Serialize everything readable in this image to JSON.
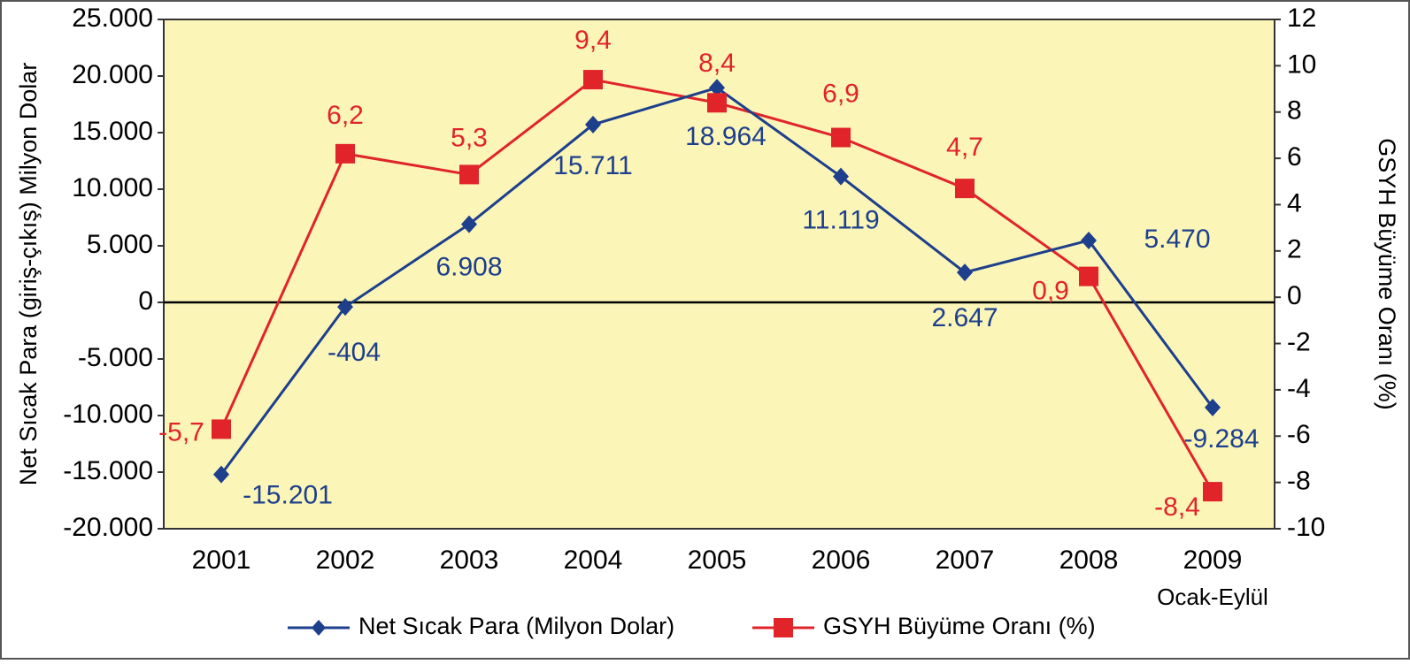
{
  "chart_data": {
    "type": "line",
    "categories": [
      "2001",
      "2002",
      "2003",
      "2004",
      "2005",
      "2006",
      "2007",
      "2008",
      "2009"
    ],
    "annotations": [
      "Ocak-Eylül"
    ],
    "y_label": "Net Sıcak Para (giriş-çıkış) Milyon Dolar",
    "y2_label": "GSYH Büyüme Oranı (%)",
    "ylim": [
      -20000,
      25000
    ],
    "yticks": [
      {
        "value": -20000,
        "label": "-20.000"
      },
      {
        "value": -15000,
        "label": "-15.000"
      },
      {
        "value": -10000,
        "label": "-10.000"
      },
      {
        "value": -5000,
        "label": "-5.000"
      },
      0,
      {
        "value": 5000,
        "label": "5.000"
      },
      {
        "value": 10000,
        "label": "10.000"
      },
      {
        "value": 15000,
        "label": "15.000"
      },
      {
        "value": 20000,
        "label": "20.000"
      },
      {
        "value": 25000,
        "label": "25.000"
      }
    ],
    "y2lim": [
      -10,
      12
    ],
    "y2ticks": [
      -10,
      -8,
      -6,
      -4,
      -2,
      0,
      2,
      4,
      6,
      8,
      10,
      12
    ],
    "legend": "bottom",
    "series": [
      {
        "name": "Net Sıcak Para (Milyon Dolar)",
        "color": "#1d3f8c",
        "marker": "diamond",
        "values": [
          -15201,
          -404,
          6908,
          15711,
          18964,
          11119,
          2647,
          5470,
          -9284
        ],
        "value_labels": [
          "-15.201",
          "-404",
          "6.908",
          "15.711",
          "18.964",
          "11.119",
          "2.647",
          "5.470",
          "-9.284"
        ]
      },
      {
        "name": "GSYH Büyüme Oranı (%)",
        "color": "#e0242a",
        "marker": "square",
        "axis": "y2",
        "values": [
          -5.7,
          6.2,
          5.3,
          9.4,
          8.4,
          6.9,
          4.7,
          0.9,
          -8.4
        ],
        "value_labels": [
          "-5,7",
          "6,2",
          "5,3",
          "9,4",
          "8,4",
          "6,9",
          "4,7",
          "0,9",
          "-8,4"
        ]
      }
    ]
  }
}
